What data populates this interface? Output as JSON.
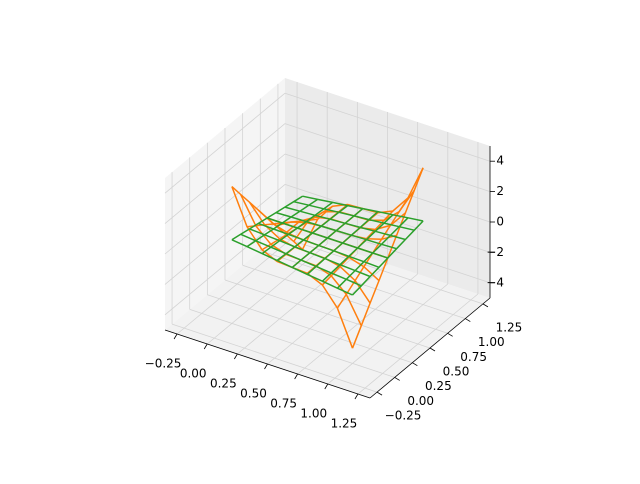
{
  "chart_data": {
    "type": "wireframe3d",
    "x": [
      0,
      0.125,
      0.25,
      0.375,
      0.5,
      0.625,
      0.75,
      0.875,
      1
    ],
    "y": [
      0,
      0.125,
      0.25,
      0.375,
      0.5,
      0.625,
      0.75,
      0.875,
      1
    ],
    "series": [
      {
        "color": "#ff7f0e",
        "z": [
          [
            4,
            1.69,
            0.5,
            0.06,
            0,
            -0.06,
            -0.5,
            -1.69,
            -4
          ],
          [
            3,
            1.27,
            0.38,
            0.05,
            0,
            -0.05,
            -0.38,
            -1.27,
            -3
          ],
          [
            2,
            0.85,
            0.25,
            0.03,
            0,
            -0.03,
            -0.25,
            -0.85,
            -2
          ],
          [
            1,
            0.42,
            0.13,
            0.02,
            0,
            -0.02,
            -0.13,
            -0.42,
            -1
          ],
          [
            0,
            0,
            0,
            0,
            0,
            0,
            0,
            0,
            0
          ],
          [
            -1,
            -0.42,
            -0.13,
            -0.02,
            0,
            0.02,
            0.13,
            0.42,
            1
          ],
          [
            -2,
            -0.85,
            -0.25,
            -0.03,
            0,
            0.03,
            0.25,
            0.85,
            2
          ],
          [
            -3,
            -1.27,
            -0.38,
            -0.05,
            0,
            0.05,
            0.38,
            1.27,
            3
          ],
          [
            -4,
            -1.69,
            -0.5,
            -0.06,
            0,
            0.06,
            0.5,
            1.69,
            4
          ]
        ]
      },
      {
        "color": "#2ca02c",
        "z": [
          [
            0.5,
            0.38,
            0.25,
            0.13,
            0,
            -0.13,
            -0.25,
            -0.38,
            -0.5
          ],
          [
            0.38,
            0.28,
            0.19,
            0.09,
            0,
            -0.09,
            -0.19,
            -0.28,
            -0.38
          ],
          [
            0.25,
            0.19,
            0.13,
            0.06,
            0,
            -0.06,
            -0.13,
            -0.19,
            -0.25
          ],
          [
            0.13,
            0.09,
            0.06,
            0.03,
            0,
            -0.03,
            -0.06,
            -0.09,
            -0.13
          ],
          [
            0,
            0,
            0,
            0,
            0,
            0,
            0,
            0,
            0
          ],
          [
            -0.13,
            -0.09,
            -0.06,
            -0.03,
            0,
            0.03,
            0.06,
            0.09,
            0.13
          ],
          [
            -0.25,
            -0.19,
            -0.13,
            -0.06,
            0,
            0.06,
            0.13,
            0.19,
            0.25
          ],
          [
            -0.38,
            -0.28,
            -0.19,
            -0.09,
            0,
            0.09,
            0.19,
            0.28,
            0.38
          ],
          [
            -0.5,
            -0.38,
            -0.25,
            -0.13,
            0,
            0.13,
            0.25,
            0.38,
            0.5
          ]
        ]
      }
    ],
    "xlim": [
      -0.35,
      1.35
    ],
    "ylim": [
      -0.35,
      1.35
    ],
    "zlim": [
      -5,
      5
    ],
    "xticks": [
      {
        "value": -0.25,
        "label": "−0.25"
      },
      {
        "value": 0,
        "label": "0.00"
      },
      {
        "value": 0.25,
        "label": "0.25"
      },
      {
        "value": 0.5,
        "label": "0.50"
      },
      {
        "value": 0.75,
        "label": "0.75"
      },
      {
        "value": 1,
        "label": "1.00"
      },
      {
        "value": 1.25,
        "label": "1.25"
      }
    ],
    "yticks": [
      {
        "value": -0.25,
        "label": "−0.25"
      },
      {
        "value": 0,
        "label": "0.00"
      },
      {
        "value": 0.25,
        "label": "0.25"
      },
      {
        "value": 0.5,
        "label": "0.50"
      },
      {
        "value": 0.75,
        "label": "0.75"
      },
      {
        "value": 1,
        "label": "1.00"
      },
      {
        "value": 1.25,
        "label": "1.25"
      }
    ],
    "zticks": [
      {
        "value": -4,
        "label": "−4"
      },
      {
        "value": -2,
        "label": "−2"
      },
      0,
      2,
      4
    ],
    "grid": true
  }
}
